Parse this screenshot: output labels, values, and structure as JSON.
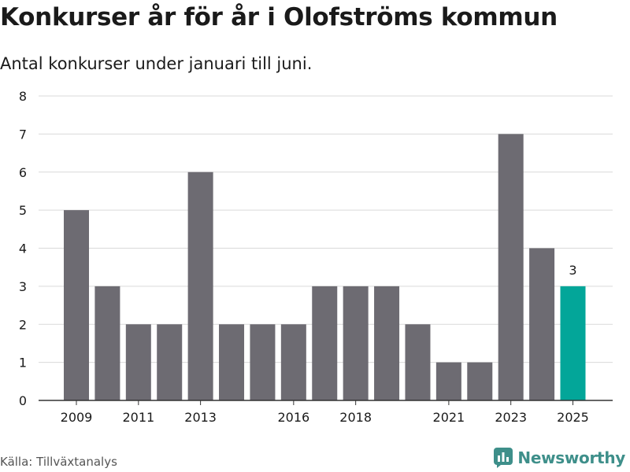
{
  "header": {
    "title": "Konkurser år för år i Olofströms kommun",
    "subtitle": "Antal konkurser under januari till juni."
  },
  "footer": {
    "source": "Källa: Tillväxtanalys",
    "brand": "Newsworthy",
    "brand_icon": "newsworthy-logo-icon"
  },
  "colors": {
    "bar": "#6d6b72",
    "highlight": "#03a699",
    "grid": "#d9d9d9",
    "axis": "#333333",
    "brand": "#3e8f8a"
  },
  "chart_data": {
    "type": "bar",
    "title": "Konkurser år för år i Olofströms kommun",
    "subtitle": "Antal konkurser under januari till juni.",
    "categories": [
      "2009",
      "2010",
      "2011",
      "2012",
      "2013",
      "2014",
      "2015",
      "2016",
      "2017",
      "2018",
      "2019",
      "2020",
      "2021",
      "2022",
      "2023",
      "2024",
      "2025"
    ],
    "values": [
      5,
      3,
      2,
      2,
      6,
      2,
      2,
      2,
      3,
      3,
      3,
      2,
      1,
      1,
      7,
      4,
      3
    ],
    "x_tick_labels": [
      "2009",
      "2011",
      "2013",
      "2016",
      "2018",
      "2021",
      "2023",
      "2025"
    ],
    "y_ticks": [
      0,
      1,
      2,
      3,
      4,
      5,
      6,
      7,
      8
    ],
    "ylim": [
      0,
      8
    ],
    "highlight_category": "2025",
    "highlight_label": "3",
    "grid": true,
    "legend": "none",
    "xlabel": "",
    "ylabel": ""
  }
}
